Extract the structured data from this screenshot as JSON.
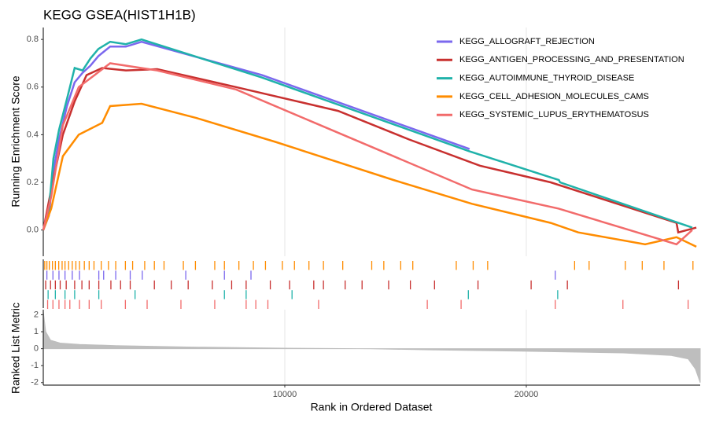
{
  "chart_data": [
    {
      "type": "line",
      "title": "KEGG GSEA(HIST1H1B)",
      "ylabel": "Running Enrichment Score",
      "xlim": [
        0,
        27200
      ],
      "xticks": [
        10000,
        20000
      ],
      "grid": true,
      "legend": "top-right",
      "ylim": [
        -0.11,
        0.85
      ],
      "yticks": [
        {
          "value": 0,
          "label": "0.0"
        },
        0.2,
        0.4,
        0.6,
        0.8
      ],
      "series": [
        {
          "name": "KEGG_ALLOGRAFT_REJECTION",
          "color": "#7b68ee",
          "x": [
            0,
            230,
            420,
            650,
            980,
            1300,
            1630,
            1950,
            2280,
            2770,
            3420,
            4070,
            9060,
            17650
          ],
          "values": [
            0,
            0.06,
            0.25,
            0.38,
            0.52,
            0.62,
            0.66,
            0.69,
            0.73,
            0.77,
            0.77,
            0.79,
            0.65,
            0.34
          ]
        },
        {
          "name": "KEGG_ANTIGEN_PROCESSING_AND_PRESENTATION",
          "color": "#c8302f",
          "x": [
            0,
            330,
            810,
            1300,
            1790,
            2440,
            3420,
            4720,
            7980,
            12210,
            15150,
            18080,
            21010,
            26220,
            26290,
            27040
          ],
          "values": [
            0,
            0.17,
            0.4,
            0.54,
            0.65,
            0.68,
            0.67,
            0.675,
            0.6,
            0.5,
            0.38,
            0.27,
            0.2,
            0.03,
            -0.01,
            0.01
          ]
        },
        {
          "name": "KEGG_AUTOIMMUNE_THYROID_DISEASE",
          "color": "#20b2aa",
          "x": [
            0,
            230,
            420,
            650,
            980,
            1300,
            1630,
            1950,
            2280,
            2770,
            3420,
            4070,
            9060,
            17650,
            21350,
            21400,
            26870
          ],
          "values": [
            0,
            0.08,
            0.3,
            0.42,
            0.55,
            0.68,
            0.67,
            0.72,
            0.76,
            0.79,
            0.78,
            0.8,
            0.64,
            0.33,
            0.21,
            0.2,
            0.01
          ]
        },
        {
          "name": "KEGG_CELL_ADHESION_MOLECULES_CAMS",
          "color": "#ff8c00",
          "x": [
            0,
            330,
            810,
            1470,
            2440,
            2770,
            4070,
            6350,
            9610,
            14500,
            17750,
            21010,
            22150,
            24920,
            26220,
            27040
          ],
          "values": [
            0,
            0.09,
            0.31,
            0.4,
            0.45,
            0.52,
            0.53,
            0.47,
            0.37,
            0.21,
            0.11,
            0.03,
            -0.01,
            -0.06,
            -0.03,
            -0.07
          ]
        },
        {
          "name": "KEGG_SYSTEMIC_LUPUS_ERYTHEMATOSUS",
          "color": "#f26b6b",
          "x": [
            0,
            330,
            810,
            1470,
            2120,
            2770,
            4720,
            7980,
            11240,
            14500,
            17750,
            21340,
            24270,
            26220,
            26870
          ],
          "values": [
            0,
            0.14,
            0.44,
            0.6,
            0.65,
            0.7,
            0.67,
            0.59,
            0.45,
            0.31,
            0.17,
            0.09,
            0,
            -0.06,
            0
          ]
        }
      ]
    },
    {
      "type": "rug",
      "xlim": [
        0,
        27200
      ],
      "series": [
        {
          "color": "#ff8c00",
          "x": [
            60,
            150,
            250,
            380,
            500,
            640,
            780,
            900,
            1050,
            1200,
            1350,
            1500,
            1700,
            1900,
            2100,
            2400,
            2700,
            3000,
            3400,
            3700,
            4200,
            4600,
            5000,
            5800,
            6300,
            7100,
            7500,
            8100,
            8700,
            9200,
            9900,
            10400,
            11000,
            11600,
            12400,
            13600,
            14100,
            14800,
            15300,
            17100,
            17800,
            18400,
            22000,
            22600,
            24100,
            24800,
            25700,
            26900
          ]
        },
        {
          "color": "#7b68ee",
          "x": [
            150,
            400,
            650,
            900,
            1200,
            1500,
            2300,
            2500,
            3000,
            3600,
            4100,
            5900,
            7500,
            8600,
            21200
          ]
        },
        {
          "color": "#c8302f",
          "x": [
            100,
            300,
            500,
            700,
            950,
            1300,
            1600,
            1900,
            2300,
            2800,
            3200,
            3600,
            4600,
            5300,
            6000,
            7000,
            7800,
            8400,
            9400,
            10200,
            11200,
            11600,
            12500,
            13200,
            14300,
            15200,
            16200,
            18000,
            20200,
            21700,
            26300
          ]
        },
        {
          "color": "#20b2aa",
          "x": [
            200,
            500,
            900,
            1300,
            2300,
            3800,
            7500,
            8400,
            10300,
            17600,
            21300
          ]
        },
        {
          "color": "#f26b6b",
          "x": [
            180,
            400,
            650,
            900,
            1100,
            1500,
            1900,
            2400,
            3400,
            4300,
            5700,
            7100,
            8400,
            8800,
            9300,
            11400,
            15900,
            17300,
            21200,
            24000,
            26700
          ]
        }
      ]
    },
    {
      "type": "area",
      "xlabel": "Rank in Ordered Dataset",
      "ylabel": "Ranked List Metric",
      "color": "#bebebe",
      "xlim": [
        0,
        27200
      ],
      "xticks": [
        10000,
        20000
      ],
      "ylim": [
        -2.15,
        2.3
      ],
      "yticks": [
        -2,
        -1,
        0,
        1,
        2
      ],
      "x": [
        0,
        100,
        300,
        700,
        1500,
        3000,
        6000,
        10000,
        13000,
        13600,
        16000,
        20000,
        24000,
        26000,
        26700,
        27000,
        27200
      ],
      "values": [
        2.2,
        1.0,
        0.5,
        0.33,
        0.25,
        0.18,
        0.1,
        0.03,
        0.0,
        -0.01,
        -0.07,
        -0.15,
        -0.25,
        -0.4,
        -0.6,
        -1.2,
        -2.0
      ]
    }
  ]
}
